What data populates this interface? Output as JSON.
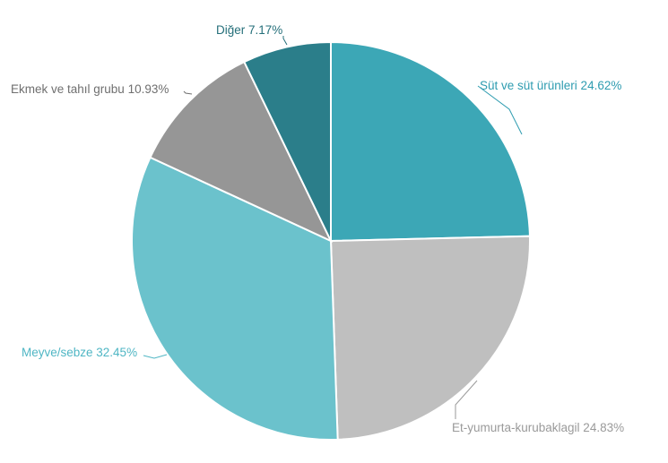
{
  "chart_data": {
    "type": "pie",
    "title": "",
    "slices": [
      {
        "label": "Süt ve süt ürünleri",
        "value": 24.62,
        "display": "Süt ve süt ürünleri 24.62%",
        "color": "#3ca7b6",
        "label_color": "#2e9cb0"
      },
      {
        "label": "Et-yumurta-kurubaklagil",
        "value": 24.83,
        "display": "Et-yumurta-kurubaklagil 24.83%",
        "color": "#bfbfbf",
        "label_color": "#9a9a9a"
      },
      {
        "label": "Meyve/sebze",
        "value": 32.45,
        "display": "Meyve/sebze 32.45%",
        "color": "#6bc2cc",
        "label_color": "#4fb6c4"
      },
      {
        "label": "Ekmek ve tahıl grubu",
        "value": 10.93,
        "display": "Ekmek ve tahıl grubu 10.93%",
        "color": "#969696",
        "label_color": "#6f6f6f"
      },
      {
        "label": "Diğer",
        "value": 7.17,
        "display": "Diğer 7.17%",
        "color": "#2b7e8a",
        "label_color": "#256f7a"
      }
    ]
  }
}
